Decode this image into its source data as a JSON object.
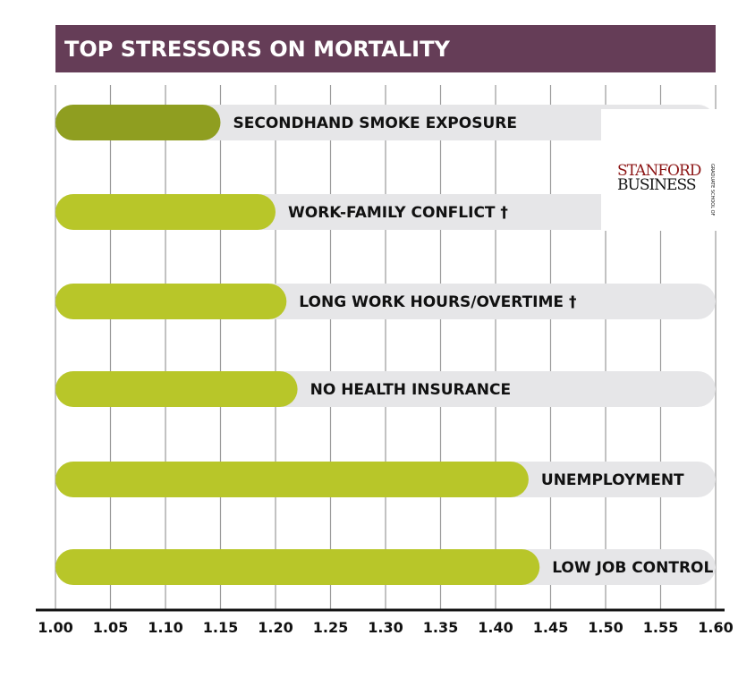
{
  "chart_data": {
    "type": "bar",
    "orientation": "horizontal",
    "title": "TOP STRESSORS ON MORTALITY",
    "categories": [
      "SECONDHAND SMOKE EXPOSURE",
      "WORK-FAMILY CONFLICT †",
      "LONG WORK HOURS/OVERTIME †",
      "NO HEALTH INSURANCE",
      "UNEMPLOYMENT",
      "LOW JOB CONTROL"
    ],
    "values": [
      1.15,
      1.2,
      1.21,
      1.22,
      1.43,
      1.44
    ],
    "highlight_index": 0,
    "xlim": [
      1.0,
      1.6
    ],
    "xticks": [
      "1.00",
      "1.05",
      "1.10",
      "1.15",
      "1.20",
      "1.25",
      "1.30",
      "1.35",
      "1.40",
      "1.45",
      "1.50",
      "1.55",
      "1.60"
    ],
    "grid": true,
    "xlabel": "",
    "ylabel": ""
  },
  "logo": {
    "line1": "STANFORD",
    "line2": "BUSINESS",
    "side": "GRADUATE SCHOOL OF"
  },
  "colors": {
    "title_bg": "#653d57",
    "bar": "#b8c629",
    "bar_highlight": "#8f9e20",
    "track": "#e6e6e8",
    "grid": "#9a9a9a",
    "logo_red": "#8c1515"
  }
}
